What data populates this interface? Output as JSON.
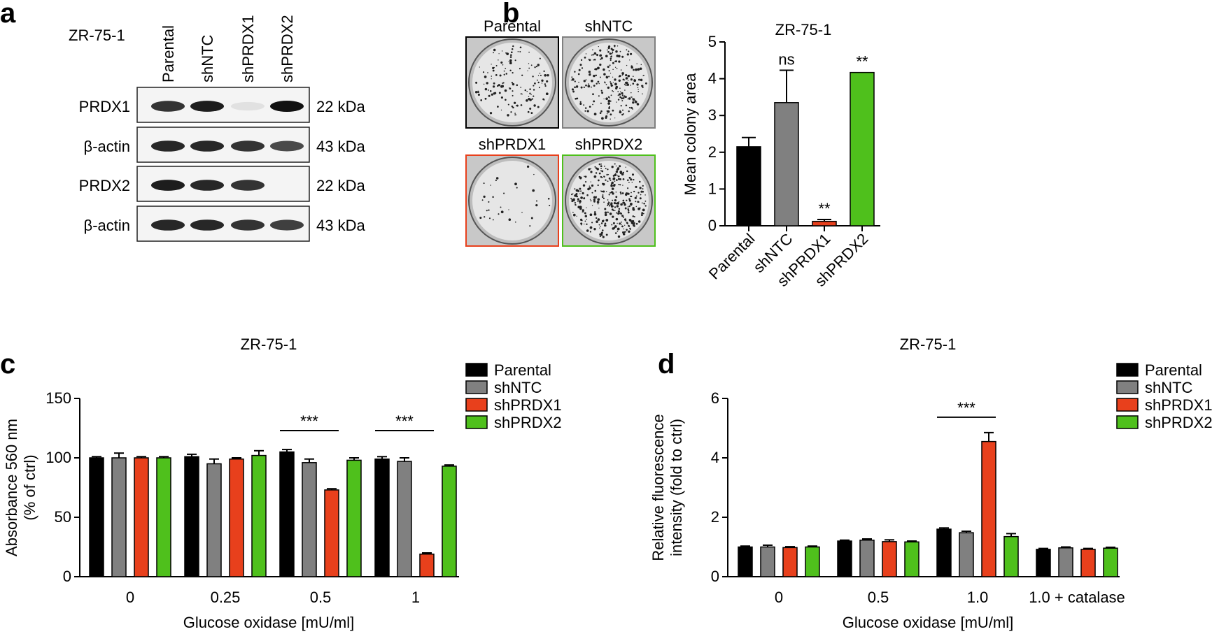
{
  "colors": {
    "parental": "#000000",
    "shntc": "#808080",
    "shprdx1": "#e8401c",
    "shprdx2": "#4fc01c"
  },
  "panel_a": {
    "label": "a",
    "cell_line": "ZR-75-1",
    "lanes": [
      "Parental",
      "shNTC",
      "shPRDX1",
      "shPRDX2"
    ],
    "blots": [
      {
        "name": "PRDX1",
        "size": "22 kDa",
        "intensity": [
          0.85,
          0.95,
          0.05,
          1.0
        ]
      },
      {
        "name": "β-actin",
        "size": "43 kDa",
        "intensity": [
          0.9,
          0.9,
          0.85,
          0.75
        ]
      },
      {
        "name": "PRDX2",
        "size": "22 kDa",
        "intensity": [
          0.95,
          0.9,
          0.85,
          0.0
        ]
      },
      {
        "name": "β-actin",
        "size": "43 kDa",
        "intensity": [
          0.9,
          0.9,
          0.85,
          0.8
        ]
      }
    ]
  },
  "panel_b": {
    "label": "b",
    "plates": [
      {
        "name": "Parental",
        "density": 0.35,
        "color": "#000000"
      },
      {
        "name": "shNTC",
        "density": 0.6,
        "color": "#808080"
      },
      {
        "name": "shPRDX1",
        "density": 0.08,
        "color": "#e8401c"
      },
      {
        "name": "shPRDX2",
        "density": 0.85,
        "color": "#4fc01c"
      }
    ]
  },
  "chart_data": [
    {
      "type": "bar",
      "panel": "b",
      "title": "ZR-75-1",
      "xlabel": "",
      "ylabel": "Mean colony area",
      "ylim": [
        0,
        5
      ],
      "yticks": [
        "0",
        "1",
        "2",
        "3",
        "4",
        "5"
      ],
      "categories": [
        "Parental",
        "shNTC",
        "shPRDX1",
        "shPRDX2"
      ],
      "values": [
        2.15,
        3.35,
        0.12,
        4.17
      ],
      "errors": [
        0.25,
        0.88,
        0.05,
        0.0
      ],
      "annotations": [
        "",
        "ns",
        "**",
        "**"
      ]
    },
    {
      "type": "bar",
      "panel": "c",
      "label": "c",
      "title": "ZR-75-1",
      "xlabel": "Glucose oxidase [mU/ml]",
      "ylabel": "Absorbance 560 nm",
      "ylabel2": "(% of ctrl)",
      "ylim": [
        0,
        150
      ],
      "yticks": [
        "0",
        "50",
        "100",
        "150"
      ],
      "categories": [
        "0",
        "0.25",
        "0.5",
        "1"
      ],
      "series": [
        {
          "name": "Parental",
          "values": [
            100,
            101,
            105,
            99
          ],
          "errors": [
            1,
            2,
            2,
            2
          ]
        },
        {
          "name": "shNTC",
          "values": [
            100,
            95,
            96,
            97
          ],
          "errors": [
            4,
            4,
            3,
            3
          ]
        },
        {
          "name": "shPRDX1",
          "values": [
            100,
            99,
            73,
            19
          ],
          "errors": [
            1,
            1,
            1,
            1
          ]
        },
        {
          "name": "shPRDX2",
          "values": [
            100,
            102,
            98,
            93
          ],
          "errors": [
            1,
            4,
            2,
            1
          ]
        }
      ],
      "significance": [
        {
          "group": 2,
          "text": "***"
        },
        {
          "group": 3,
          "text": "***"
        }
      ],
      "legend": "right"
    },
    {
      "type": "bar",
      "panel": "d",
      "label": "d",
      "title": "ZR-75-1",
      "xlabel": "Glucose oxidase [mU/ml]",
      "ylabel": "Relative fluorescence",
      "ylabel2": "intensity (fold to ctrl)",
      "ylim": [
        0,
        6
      ],
      "yticks": [
        "0",
        "2",
        "4",
        "6"
      ],
      "categories": [
        "0",
        "0.5",
        "1.0",
        "1.0 + catalase"
      ],
      "series": [
        {
          "name": "Parental",
          "values": [
            1.0,
            1.2,
            1.6,
            0.92
          ],
          "errors": [
            0.03,
            0.03,
            0.04,
            0.03
          ]
        },
        {
          "name": "shNTC",
          "values": [
            1.0,
            1.23,
            1.48,
            0.97
          ],
          "errors": [
            0.06,
            0.04,
            0.05,
            0.03
          ]
        },
        {
          "name": "shPRDX1",
          "values": [
            0.98,
            1.18,
            4.55,
            0.92
          ],
          "errors": [
            0.03,
            0.06,
            0.3,
            0.03
          ]
        },
        {
          "name": "shPRDX2",
          "values": [
            1.0,
            1.17,
            1.35,
            0.96
          ],
          "errors": [
            0.03,
            0.03,
            0.1,
            0.03
          ]
        }
      ],
      "significance": [
        {
          "group": 2,
          "text": "***"
        }
      ],
      "legend": "right"
    }
  ]
}
